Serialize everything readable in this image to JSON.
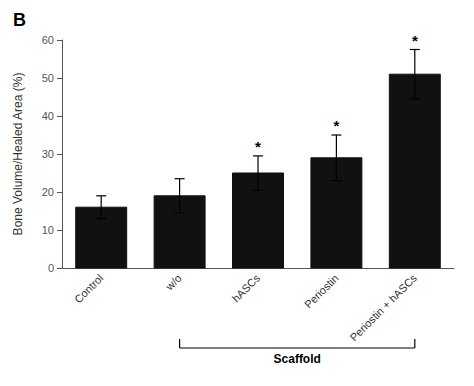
{
  "chart_data": {
    "type": "bar",
    "title": "B",
    "categories": [
      "Control",
      "w/o",
      "hASCs",
      "Periostin",
      "Periostin + hASCs"
    ],
    "values": [
      16.0,
      19.0,
      25.0,
      29.0,
      51.0
    ],
    "errors": [
      3.0,
      4.5,
      4.5,
      6.0,
      6.5
    ],
    "color": "#111111",
    "ylabel": "Bone Volume/Healed Area (%)",
    "ylim": [
      0,
      60
    ],
    "yticks": [
      0,
      10,
      20,
      30,
      40,
      50,
      60
    ],
    "grid": false,
    "annotations": [
      {
        "text": "*",
        "category": "hASCs"
      },
      {
        "text": "*",
        "category": "Periostin"
      },
      {
        "text": "*",
        "category": "Periostin + hASCs"
      },
      {
        "text": "Scaffold",
        "from": "w/o",
        "to": "Periostin + hASCs"
      }
    ]
  }
}
